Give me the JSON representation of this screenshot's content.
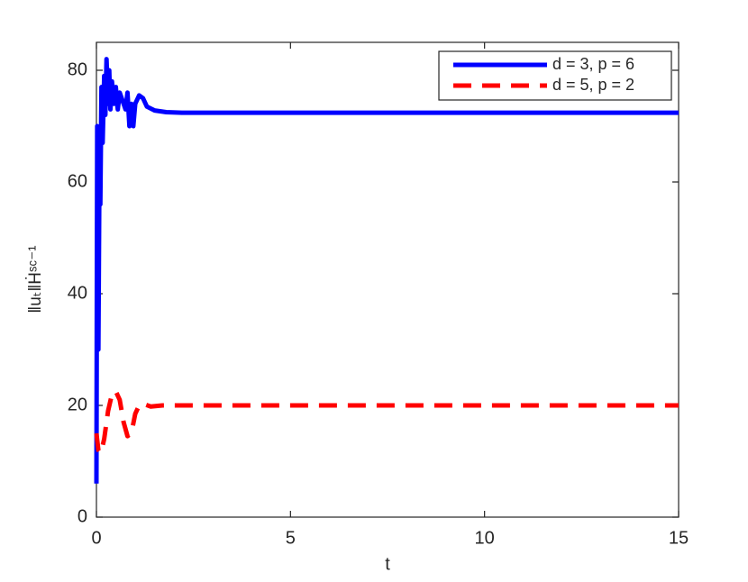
{
  "chart_data": {
    "type": "line",
    "xlabel": "t",
    "ylabel": "‖uₜ‖Ḣˢᶜ⁻¹",
    "xlim": [
      0,
      15
    ],
    "ylim": [
      0,
      85
    ],
    "xticks": [
      0,
      5,
      10,
      15
    ],
    "yticks": [
      0,
      20,
      40,
      60,
      80
    ],
    "grid": false,
    "legend": "upper right",
    "series": [
      {
        "name": "d = 3, p = 6",
        "color": "#0000ff",
        "style": "solid",
        "x": [
          0,
          0.02,
          0.05,
          0.08,
          0.1,
          0.13,
          0.16,
          0.2,
          0.23,
          0.26,
          0.3,
          0.33,
          0.36,
          0.4,
          0.45,
          0.5,
          0.55,
          0.6,
          0.65,
          0.7,
          0.75,
          0.8,
          0.85,
          0.9,
          0.95,
          1.0,
          1.1,
          1.2,
          1.3,
          1.5,
          1.8,
          2.2,
          3,
          5,
          10,
          15
        ],
        "values": [
          6,
          70,
          30,
          65,
          56,
          77,
          67,
          79,
          72,
          82,
          74,
          80,
          73,
          78,
          74,
          77,
          73,
          76,
          75,
          74,
          73,
          76,
          70,
          74,
          70,
          74,
          75.5,
          75,
          73.5,
          72.8,
          72.5,
          72.4,
          72.4,
          72.4,
          72.4,
          72.4
        ]
      },
      {
        "name": "d = 5, p = 2",
        "color": "#ff0000",
        "style": "dashed",
        "x": [
          0,
          0.05,
          0.1,
          0.15,
          0.2,
          0.3,
          0.4,
          0.5,
          0.6,
          0.7,
          0.8,
          0.9,
          1.0,
          1.1,
          1.2,
          1.4,
          1.7,
          2,
          3,
          15
        ],
        "values": [
          15,
          12,
          11.5,
          12.5,
          14,
          19,
          22,
          22.5,
          21,
          17,
          14.5,
          15,
          18.5,
          20,
          20.3,
          19.8,
          20,
          20,
          20,
          20
        ]
      }
    ]
  }
}
